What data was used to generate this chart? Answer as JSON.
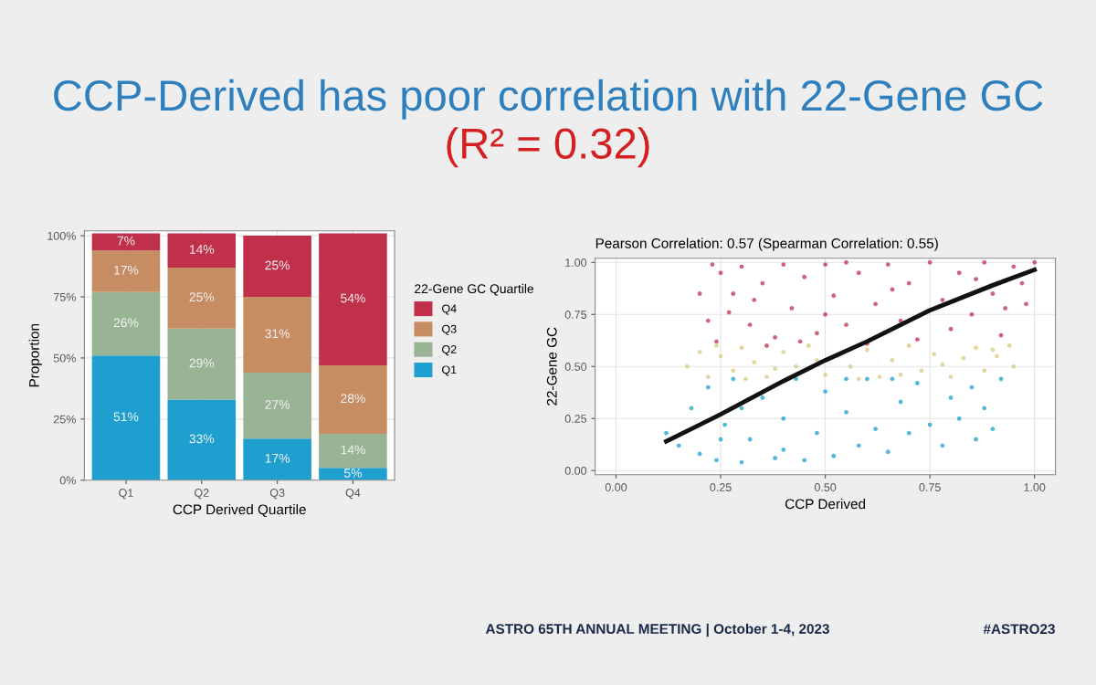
{
  "chart_data": [
    {
      "type": "other",
      "title": "CCP-Derived has poor correlation with 22-Gene GC",
      "subtitle": "(R² = 0.32)",
      "annotations": [
        "ASTRO 65TH ANNUAL MEETING | October 1-4, 2023",
        "#ASTRO23"
      ]
    },
    {
      "type": "bar",
      "xlabel": "CCP Derived Quartile",
      "ylabel": "Proportion",
      "legend_title": "22-Gene GC Quartile",
      "legend": "right",
      "stacked": true,
      "grid": true,
      "categories": [
        "Q1",
        "Q2",
        "Q3",
        "Q4"
      ],
      "ylim": [
        0,
        102
      ],
      "yticks": [
        {
          "value": 0,
          "label": "0%"
        },
        {
          "value": 25,
          "label": "25%"
        },
        {
          "value": 50,
          "label": "50%"
        },
        {
          "value": 75,
          "label": "75%"
        },
        {
          "value": 100,
          "label": "100%"
        }
      ],
      "series": [
        {
          "name": "Q1",
          "color": "#1e9fd0",
          "values": [
            51,
            33,
            17,
            5
          ],
          "value_labels": [
            "51%",
            "33%",
            "17%",
            "5%"
          ]
        },
        {
          "name": "Q2",
          "color": "#98b495",
          "values": [
            26,
            29,
            27,
            14
          ],
          "value_labels": [
            "26%",
            "29%",
            "27%",
            "14%"
          ]
        },
        {
          "name": "Q3",
          "color": "#c68c62",
          "values": [
            17,
            25,
            31,
            28
          ],
          "value_labels": [
            "17%",
            "25%",
            "31%",
            "28%"
          ]
        },
        {
          "name": "Q4",
          "color": "#c0304a",
          "values": [
            7,
            14,
            25,
            54
          ],
          "value_labels": [
            "7%",
            "14%",
            "25%",
            "54%"
          ]
        }
      ]
    },
    {
      "type": "scatter",
      "title": "Pearson Correlation: 0.57 (Spearman Correlation: 0.55)",
      "xlabel": "CCP Derived",
      "ylabel": "22-Gene GC",
      "grid": true,
      "marker": "circle",
      "xlim": [
        -0.05,
        1.05
      ],
      "ylim": [
        -0.02,
        1.02
      ],
      "xticks": [
        {
          "value": 0,
          "label": "0.00"
        },
        {
          "value": 0.25,
          "label": "0.25"
        },
        {
          "value": 0.5,
          "label": "0.50"
        },
        {
          "value": 0.75,
          "label": "0.75"
        },
        {
          "value": 1,
          "label": "1.00"
        }
      ],
      "yticks": [
        {
          "value": 0,
          "label": "0.00"
        },
        {
          "value": 0.25,
          "label": "0.25"
        },
        {
          "value": 0.5,
          "label": "0.50"
        },
        {
          "value": 0.75,
          "label": "0.75"
        },
        {
          "value": 1,
          "label": "1.00"
        }
      ],
      "series": [
        {
          "color": "#c0304a",
          "x": [
            0.23,
            0.25,
            0.22,
            0.24,
            0.28,
            0.3,
            0.32,
            0.35,
            0.38,
            0.4,
            0.42,
            0.45,
            0.48,
            0.5,
            0.52,
            0.55,
            0.58,
            0.6,
            0.62,
            0.65,
            0.68,
            0.7,
            0.72,
            0.75,
            0.78,
            0.8,
            0.82,
            0.85,
            0.88,
            0.9,
            0.92,
            0.95,
            0.97,
            1.0,
            0.98,
            0.2,
            0.36,
            0.55,
            0.27,
            0.44,
            0.66,
            0.86,
            0.93,
            0.33,
            0.5
          ],
          "values": [
            0.99,
            0.95,
            0.72,
            0.62,
            0.85,
            0.98,
            0.7,
            0.9,
            0.64,
            0.99,
            0.78,
            0.93,
            0.66,
            0.99,
            0.84,
            0.7,
            0.95,
            0.61,
            0.8,
            0.99,
            0.72,
            0.9,
            0.63,
            1.0,
            0.82,
            0.68,
            0.95,
            0.75,
            1.0,
            0.85,
            0.65,
            0.98,
            0.9,
            1.0,
            0.8,
            0.85,
            0.6,
            1.0,
            0.76,
            0.62,
            0.87,
            0.92,
            0.78,
            0.82,
            0.75
          ]
        },
        {
          "color": "#d8c882",
          "x": [
            0.17,
            0.2,
            0.22,
            0.25,
            0.28,
            0.3,
            0.33,
            0.36,
            0.4,
            0.43,
            0.46,
            0.5,
            0.53,
            0.56,
            0.6,
            0.63,
            0.66,
            0.7,
            0.73,
            0.76,
            0.8,
            0.83,
            0.86,
            0.88,
            0.91,
            0.94,
            0.95,
            0.24,
            0.38,
            0.48,
            0.68,
            0.78,
            0.58,
            0.31,
            0.9
          ],
          "values": [
            0.5,
            0.57,
            0.45,
            0.55,
            0.48,
            0.59,
            0.52,
            0.45,
            0.57,
            0.5,
            0.6,
            0.46,
            0.55,
            0.5,
            0.58,
            0.45,
            0.53,
            0.6,
            0.48,
            0.56,
            0.45,
            0.54,
            0.59,
            0.48,
            0.55,
            0.6,
            0.5,
            0.6,
            0.49,
            0.53,
            0.46,
            0.51,
            0.44,
            0.44,
            0.58
          ]
        },
        {
          "color": "#1e9fd0",
          "x": [
            0.12,
            0.15,
            0.18,
            0.2,
            0.22,
            0.24,
            0.26,
            0.28,
            0.3,
            0.32,
            0.35,
            0.38,
            0.4,
            0.43,
            0.45,
            0.48,
            0.5,
            0.52,
            0.55,
            0.58,
            0.6,
            0.62,
            0.65,
            0.68,
            0.7,
            0.72,
            0.75,
            0.78,
            0.8,
            0.82,
            0.85,
            0.88,
            0.9,
            0.92,
            0.86,
            0.66,
            0.3,
            0.4,
            0.25,
            0.55
          ],
          "values": [
            0.18,
            0.12,
            0.3,
            0.08,
            0.4,
            0.05,
            0.22,
            0.44,
            0.04,
            0.15,
            0.35,
            0.06,
            0.25,
            0.44,
            0.05,
            0.18,
            0.38,
            0.07,
            0.28,
            0.12,
            0.44,
            0.2,
            0.09,
            0.33,
            0.18,
            0.42,
            0.22,
            0.12,
            0.35,
            0.25,
            0.4,
            0.3,
            0.2,
            0.44,
            0.15,
            0.44,
            0.3,
            0.1,
            0.15,
            0.44
          ]
        },
        {
          "type": "line",
          "color": "#111111",
          "marker": "none",
          "line_style": "solid",
          "x": [
            0.12,
            0.25,
            0.4,
            0.5,
            0.6,
            0.75,
            0.9,
            1.0
          ],
          "values": [
            0.14,
            0.27,
            0.43,
            0.53,
            0.62,
            0.77,
            0.89,
            0.965
          ]
        }
      ]
    }
  ]
}
